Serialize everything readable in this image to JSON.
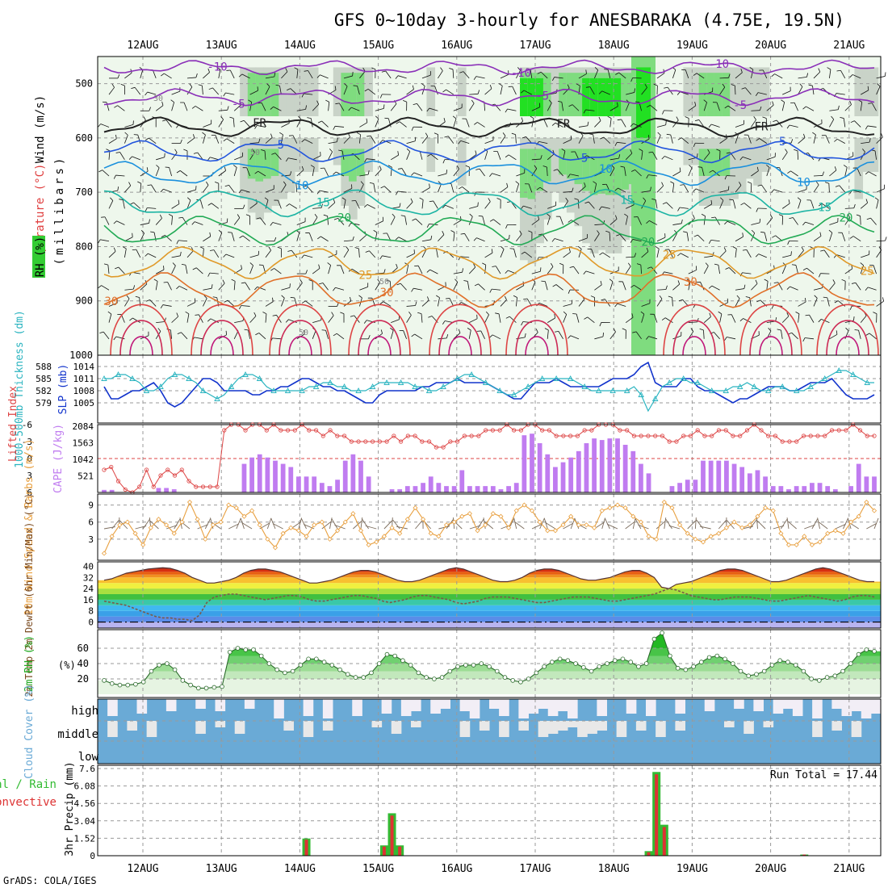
{
  "title": "GFS 0~10day 3-hourly for ANESBARAKA (4.75E, 19.5N)",
  "credit": "GrADS: COLA/IGES",
  "colors": {
    "grid": "#999999",
    "rh_light": "#eef7ec",
    "rh_mid": "#c9d3c8",
    "rh_dark": "#a6b1a4",
    "rh_green": "#7fdc7f",
    "rh_bright": "#22e022",
    "slp_line": "#1133cc",
    "thick_line": "#2bb4c0",
    "cape_bar": "#c07cf0",
    "li_line": "#dd4444",
    "wind_line": "#e8a040",
    "barb": "#7a6a5a",
    "temp_line": "#553333",
    "rh2m_fill": "#52c552",
    "cloud": "#6aaad6",
    "precip_total": "#33bb33",
    "precip_conv": "#dd3333"
  },
  "chart_data": [
    {
      "type": "heatmap",
      "panel": "upper-air cross-section",
      "labels": {
        "wind": "Wind (m/s)",
        "temperature": "Temperature (°C)",
        "rh": "RH (%)",
        "yunit": "(millibars)"
      },
      "x_labels": [
        "12AUG",
        "13AUG",
        "14AUG",
        "15AUG",
        "16AUG",
        "17AUG",
        "18AUG",
        "19AUG",
        "20AUG",
        "21AUG"
      ],
      "y_ticks": [
        500,
        600,
        700,
        800,
        900,
        1000
      ],
      "ylim": [
        450,
        1000
      ],
      "isotherms": [
        {
          "label": "-10",
          "level": 470,
          "color": "#8a2fb8"
        },
        {
          "label": "-5",
          "level": 525,
          "color": "#8a2fb8"
        },
        {
          "label": "FR",
          "level": 580,
          "color": "#222222"
        },
        {
          "label": "5",
          "level": 625,
          "color": "#2255dd"
        },
        {
          "label": "10",
          "level": 665,
          "color": "#1a90dd"
        },
        {
          "label": "15",
          "level": 720,
          "color": "#1cb4a4"
        },
        {
          "label": "20",
          "level": 770,
          "color": "#22aa55"
        },
        {
          "label": "25",
          "level": 830,
          "color": "#e09a2a"
        },
        {
          "label": "30",
          "level": 880,
          "color": "#e0702a"
        }
      ],
      "rh_labels": [
        "30",
        "50",
        "50",
        "50"
      ]
    },
    {
      "type": "line",
      "panel": "slp-thickness",
      "ylabel_left": "1000-500mb Thickness (dm)",
      "ylabel_right": "SLP (mb)",
      "thickness_ticks": [
        579,
        582,
        585,
        588
      ],
      "slp_ticks": [
        1005,
        1008,
        1011,
        1014
      ],
      "slp_mb": [
        1009,
        1006,
        1006,
        1007,
        1008,
        1008,
        1009,
        1010,
        1008,
        1005,
        1004,
        1005,
        1007,
        1009,
        1011,
        1011,
        1010,
        1008,
        1008,
        1008,
        1008,
        1007,
        1007,
        1008,
        1008,
        1009,
        1009,
        1010,
        1011,
        1011,
        1010,
        1009,
        1009,
        1008,
        1008,
        1007,
        1006,
        1005,
        1005,
        1007,
        1008,
        1008,
        1008,
        1008,
        1008,
        1009,
        1009,
        1010,
        1010,
        1010,
        1011,
        1010,
        1010,
        1010,
        1010,
        1009,
        1008,
        1007,
        1006,
        1006,
        1008,
        1010,
        1010,
        1010,
        1011,
        1010,
        1009,
        1009,
        1009,
        1009,
        1009,
        1010,
        1011,
        1011,
        1011,
        1012,
        1014,
        1015,
        1010,
        1009,
        1009,
        1009,
        1011,
        1011,
        1009,
        1008,
        1008,
        1007,
        1006,
        1005,
        1006,
        1006,
        1007,
        1008,
        1009,
        1009,
        1009,
        1008,
        1008,
        1009,
        1010,
        1010,
        1010,
        1011,
        1009,
        1007,
        1006,
        1006,
        1006,
        1007
      ],
      "thickness_dm": [
        585,
        585,
        586,
        586,
        585,
        584,
        582,
        582,
        583,
        585,
        586,
        586,
        585,
        584,
        582,
        581,
        580,
        581,
        583,
        585,
        586,
        586,
        585,
        583,
        582,
        582,
        582,
        582,
        582,
        583,
        583,
        584,
        584,
        583,
        583,
        582,
        582,
        582,
        583,
        584,
        584,
        584,
        584,
        584,
        583,
        583,
        582,
        582,
        583,
        584,
        585,
        586,
        586,
        585,
        584,
        583,
        582,
        581,
        581,
        582,
        583,
        584,
        585,
        585,
        585,
        585,
        585,
        584,
        583,
        582,
        582,
        582,
        582,
        582,
        582,
        583,
        581,
        577,
        580,
        583,
        584,
        585,
        585,
        584,
        584,
        583,
        582,
        582,
        582,
        583,
        583,
        584,
        583,
        582,
        582,
        583,
        583,
        582,
        582,
        582,
        583,
        584,
        585,
        586,
        587,
        587,
        586,
        585,
        584,
        584
      ]
    },
    {
      "type": "bar",
      "panel": "cape-lifted-index",
      "ylabel_left": "Lifted Index",
      "ylabel_right": "CAPE (J/kg)",
      "li_ticks": [
        -6,
        -3,
        0,
        3,
        6
      ],
      "cape_ticks": [
        521,
        1042,
        1563,
        2084
      ],
      "cape_jkg": [
        80,
        80,
        0,
        0,
        0,
        0,
        0,
        140,
        140,
        100,
        0,
        0,
        0,
        0,
        0,
        0,
        0,
        0,
        900,
        1100,
        1200,
        1100,
        1000,
        900,
        800,
        500,
        500,
        500,
        300,
        200,
        400,
        1000,
        1200,
        1000,
        500,
        0,
        0,
        100,
        100,
        200,
        200,
        300,
        500,
        300,
        200,
        200,
        700,
        200,
        200,
        200,
        200,
        100,
        200,
        300,
        1800,
        1850,
        1550,
        1200,
        800,
        950,
        1100,
        1300,
        1550,
        1700,
        1650,
        1700,
        1700,
        1500,
        1300,
        900,
        600,
        0,
        0,
        200,
        300,
        400,
        400,
        1000,
        1000,
        1000,
        1000,
        900,
        800,
        600,
        700,
        500,
        200,
        200,
        100,
        200,
        200,
        300,
        300,
        200,
        100,
        0,
        200,
        900,
        500,
        500
      ],
      "li_values": [
        2,
        1.5,
        4,
        5.5,
        6,
        5,
        2,
        5,
        3,
        2,
        3,
        2,
        4,
        5,
        5,
        5,
        5,
        -5,
        -6,
        -6,
        -5,
        -6,
        -6,
        -5,
        -6,
        -5,
        -5,
        -5,
        -6,
        -5,
        -5,
        -4,
        -5,
        -4,
        -4,
        -3,
        -3,
        -3,
        -3,
        -3,
        -3,
        -4,
        -3,
        -4,
        -4,
        -3,
        -3,
        -2,
        -2,
        -3,
        -3,
        -4,
        -4,
        -4,
        -5,
        -5,
        -5,
        -6,
        -5,
        -5,
        -6,
        -6,
        -5,
        -5,
        -4,
        -4,
        -4,
        -4,
        -5,
        -5,
        -6,
        -6,
        -6,
        -5,
        -5,
        -4,
        -4,
        -4,
        -4,
        -4,
        -3,
        -3,
        -4,
        -4,
        -5,
        -4,
        -4,
        -5,
        -5,
        -4,
        -4,
        -5,
        -6,
        -5,
        -4,
        -4,
        -3,
        -3,
        -3,
        -4,
        -4,
        -4,
        -4,
        -5,
        -5,
        -5,
        -6,
        -5,
        -4,
        -4
      ]
    },
    {
      "type": "line",
      "panel": "10m-wind",
      "ylabel": "10m Wind Speed & Barbs (m/s)",
      "ticks": [
        3,
        6,
        9
      ],
      "speed_ms": [
        0.5,
        3.5,
        5.5,
        6,
        4,
        2,
        5,
        6.5,
        5.5,
        4,
        6,
        9.5,
        6.5,
        3,
        5.5,
        6,
        9,
        8.5,
        7,
        8,
        5.5,
        3,
        1.5,
        4,
        5,
        4.5,
        3.5,
        5.5,
        6,
        3,
        4.5,
        6,
        7.5,
        4.5,
        2,
        2.5,
        3.5,
        5,
        4,
        6.5,
        8.5,
        6.5,
        4,
        3.5,
        5.5,
        6,
        7,
        7.5,
        4.5,
        5.5,
        7.5,
        7,
        5,
        8,
        9,
        8,
        6,
        4.5,
        4.5,
        5.5,
        7,
        5.5,
        5.5,
        5,
        8,
        8.5,
        9,
        8.5,
        7,
        6,
        3.5,
        3,
        9.5,
        8.5,
        5.5,
        4,
        3,
        2.5,
        3.5,
        4,
        5,
        6,
        5,
        5.5,
        7,
        8.5,
        8,
        4,
        2,
        2,
        3.5,
        2,
        2.5,
        4,
        4.5,
        4,
        6,
        7,
        9.5,
        8
      ]
    },
    {
      "type": "area",
      "panel": "2m-temp",
      "ylabel": "2m Temp 2m DewPt (6hr Min/Max) (°C)",
      "ticks": [
        0,
        8,
        16,
        24,
        32,
        40
      ],
      "temp_c": [
        30,
        31,
        33,
        35,
        36,
        37,
        38,
        38.5,
        39,
        38.5,
        37,
        35,
        32,
        30,
        28,
        28,
        29,
        30,
        32,
        35,
        37,
        38,
        38,
        37,
        36,
        34,
        32,
        30,
        28,
        28,
        29,
        30,
        32,
        34,
        36,
        37,
        37,
        36,
        34,
        32,
        30,
        29,
        29,
        30,
        32,
        34,
        36,
        38,
        39,
        38,
        36,
        34,
        32,
        30,
        29,
        29,
        30,
        32,
        35,
        37,
        38,
        38,
        37,
        35,
        33,
        31,
        30,
        30,
        31,
        32,
        34,
        36,
        37,
        37,
        35,
        32,
        25,
        24,
        27,
        28,
        29,
        31,
        33,
        35,
        37,
        38,
        38,
        37,
        35,
        33,
        31,
        29,
        29,
        30,
        32,
        34,
        36,
        38,
        39,
        38,
        36,
        34,
        32,
        30,
        29,
        29
      ],
      "dewpt_c": [
        15,
        14,
        13,
        12,
        10,
        8,
        6,
        4,
        3,
        3,
        2,
        2,
        1,
        5,
        14,
        18,
        19,
        20,
        20,
        19,
        18,
        17,
        16,
        17,
        18,
        19,
        19,
        18,
        16,
        15,
        15,
        16,
        17,
        18,
        19,
        19,
        18,
        17,
        15,
        14,
        15,
        16,
        18,
        19,
        19,
        18,
        17,
        16,
        14,
        13,
        14,
        15,
        17,
        18,
        18,
        18,
        17,
        16,
        15,
        14,
        14,
        15,
        16,
        17,
        18,
        18,
        18,
        17,
        16,
        15,
        15,
        16,
        17,
        18,
        19,
        20,
        22,
        24,
        23,
        21,
        19,
        18,
        17,
        16,
        16,
        17,
        18,
        18,
        18,
        17,
        16,
        15,
        15,
        16,
        17,
        18,
        19,
        18,
        17,
        16,
        15,
        16,
        18,
        19,
        19,
        18
      ]
    },
    {
      "type": "area",
      "panel": "2m-rh",
      "ylabel": "2m RH (%)",
      "ticks": [
        20,
        40,
        60
      ],
      "rh_pct": [
        18,
        14,
        12,
        12,
        13,
        16,
        30,
        38,
        40,
        32,
        18,
        12,
        8,
        8,
        9,
        10,
        55,
        60,
        58,
        58,
        50,
        40,
        32,
        28,
        30,
        38,
        46,
        46,
        42,
        38,
        32,
        26,
        22,
        22,
        28,
        40,
        52,
        50,
        44,
        38,
        28,
        22,
        20,
        22,
        30,
        36,
        38,
        38,
        40,
        36,
        30,
        22,
        18,
        16,
        20,
        28,
        36,
        42,
        46,
        44,
        40,
        35,
        30,
        36,
        40,
        44,
        46,
        42,
        36,
        40,
        72,
        80,
        50,
        34,
        32,
        36,
        42,
        48,
        50,
        46,
        40,
        30,
        24,
        26,
        30,
        38,
        44,
        42,
        38,
        30,
        20,
        18,
        22,
        24,
        30,
        40,
        52,
        58,
        56
      ]
    },
    {
      "type": "heatmap",
      "panel": "cloud-cover",
      "ylabel": "Cloud Cover (%)",
      "levels": [
        "high",
        "middle",
        "low"
      ]
    },
    {
      "type": "bar",
      "panel": "3hr-precip",
      "ylabel": "3hr Precip (mm)",
      "legend": [
        "Total / Rain",
        "Convective"
      ],
      "run_total_label": "Run Total = 17.44",
      "ticks": [
        0,
        1.52,
        3.04,
        4.56,
        6.08,
        7.6
      ],
      "ylim": [
        0,
        7.6
      ],
      "precip_mm": [
        {
          "day": "14AUG",
          "index": 26,
          "total": 1.5,
          "conv": 1.4
        },
        {
          "day": "15AUG",
          "index": 36,
          "total": 0.9,
          "conv": 0.8
        },
        {
          "day": "15AUG",
          "index": 37,
          "total": 3.7,
          "conv": 3.5
        },
        {
          "day": "15AUG",
          "index": 38,
          "total": 0.9,
          "conv": 0.8
        },
        {
          "day": "18AUG",
          "index": 70,
          "total": 0.4,
          "conv": 0.3
        },
        {
          "day": "18AUG",
          "index": 71,
          "total": 7.3,
          "conv": 7.1
        },
        {
          "day": "18AUG",
          "index": 72,
          "total": 2.7,
          "conv": 2.5
        },
        {
          "day": "20AUG",
          "index": 90,
          "total": 0.1,
          "conv": 0.1
        }
      ]
    }
  ]
}
